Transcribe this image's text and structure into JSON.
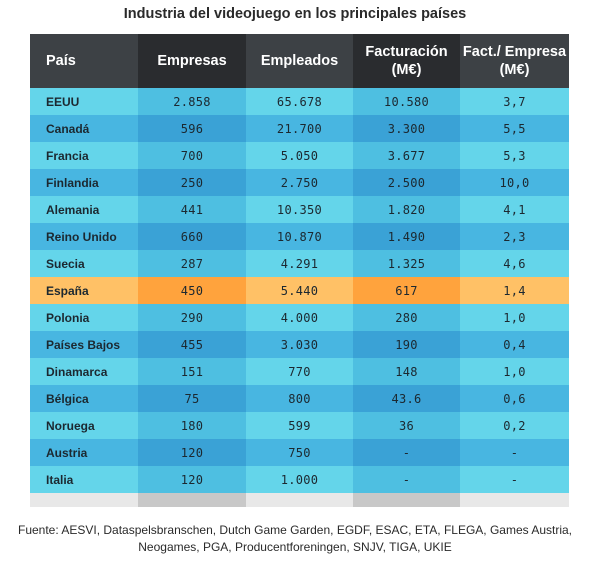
{
  "chart_data": {
    "type": "table",
    "title": "Industria del videojuego en los principales países",
    "columns": [
      "País",
      "Empresas",
      "Empleados",
      "Facturación (M€)",
      "Fact./ Empresa (M€)"
    ],
    "rows": [
      [
        "EEUU",
        "2.858",
        "65.678",
        "10.580",
        "3,7"
      ],
      [
        "Canadá",
        "596",
        "21.700",
        "3.300",
        "5,5"
      ],
      [
        "Francia",
        "700",
        "5.050",
        "3.677",
        "5,3"
      ],
      [
        "Finlandia",
        "250",
        "2.750",
        "2.500",
        "10,0"
      ],
      [
        "Alemania",
        "441",
        "10.350",
        "1.820",
        "4,1"
      ],
      [
        "Reino Unido",
        "660",
        "10.870",
        "1.490",
        "2,3"
      ],
      [
        "Suecia",
        "287",
        "4.291",
        "1.325",
        "4,6"
      ],
      [
        "España",
        "450",
        "5.440",
        "617",
        "1,4"
      ],
      [
        "Polonia",
        "290",
        "4.000",
        "280",
        "1,0"
      ],
      [
        "Países Bajos",
        "455",
        "3.030",
        "190",
        "0,4"
      ],
      [
        "Dinamarca",
        "151",
        "770",
        "148",
        "1,0"
      ],
      [
        "Bélgica",
        "75",
        "800",
        "43.6",
        "0,6"
      ],
      [
        "Noruega",
        "180",
        "599",
        "36",
        "0,2"
      ],
      [
        "Austria",
        "120",
        "750",
        "-",
        "-"
      ],
      [
        "Italia",
        "120",
        "1.000",
        "-",
        "-"
      ]
    ],
    "highlight_row": "España",
    "source": "Fuente: AESVI, Dataspelsbranschen, Dutch Game Garden, EGDF, ESAC, ETA, FLEGA, Games Austria, Neogames, PGA, Producentforeningen, SNJV, TIGA, UKIE"
  },
  "colors": {
    "header_light": "#3d4145",
    "header_dark": "#2a2c2f",
    "row_light_a": "#64d5ea",
    "row_dark_a": "#4ebfe1",
    "row_light_b": "#48b6e1",
    "row_dark_b": "#3aa2d6",
    "highlight_light": "#ffc166",
    "highlight_dark": "#ffa33d"
  }
}
